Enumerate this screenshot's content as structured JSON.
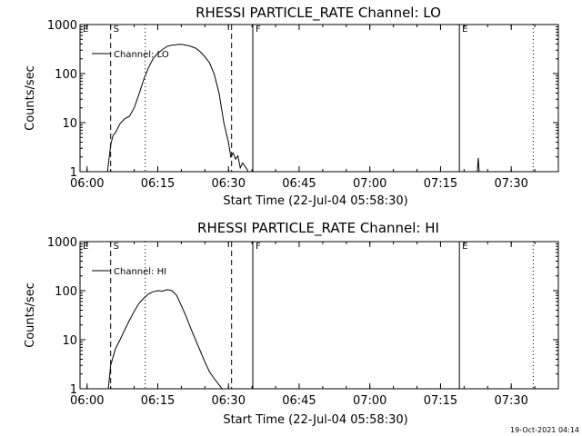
{
  "chart_data": [
    {
      "type": "line",
      "title": "RHESSI PARTICLE_RATE Channel: LO",
      "xlabel": "Start Time (22-Jul-04 05:58:30)",
      "ylabel": "Counts/sec",
      "yscale": "log",
      "ylim": [
        1,
        1000
      ],
      "xlim": [
        "05:58:30",
        "07:40:00"
      ],
      "x_ticks": [
        "06:00",
        "06:15",
        "06:30",
        "06:45",
        "07:00",
        "07:15",
        "07:30"
      ],
      "y_ticks": [
        "1",
        "10",
        "100",
        "1000"
      ],
      "grid": false,
      "legend_position": "top-left",
      "series": [
        {
          "name": "Channel: LO",
          "x": [
            "06:04:20",
            "06:05:00",
            "06:05:30",
            "06:06:00",
            "06:07:00",
            "06:08:00",
            "06:09:00",
            "06:10:00",
            "06:11:00",
            "06:12:00",
            "06:13:00",
            "06:14:00",
            "06:15:00",
            "06:16:00",
            "06:17:00",
            "06:18:00",
            "06:19:00",
            "06:20:00",
            "06:21:00",
            "06:22:00",
            "06:23:00",
            "06:24:00",
            "06:25:00",
            "06:26:00",
            "06:27:00",
            "06:28:00",
            "06:29:00",
            "06:30:00",
            "06:30:30",
            "06:31:00",
            "06:31:30",
            "06:32:00",
            "06:32:30",
            "06:33:00",
            "06:34:00",
            "06:34:10"
          ],
          "y": [
            1.0,
            3.5,
            5.5,
            6.2,
            9.5,
            12.0,
            13.5,
            20.0,
            38.0,
            75.0,
            130.0,
            200.0,
            260.0,
            310.0,
            360.0,
            380.0,
            390.0,
            395.0,
            380.0,
            360.0,
            330.0,
            280.0,
            220.0,
            165.0,
            95.0,
            40.0,
            10.0,
            4.0,
            2.0,
            2.4,
            1.8,
            2.1,
            1.2,
            1.5,
            1.1,
            1.0
          ]
        }
      ],
      "x_spike": [
        "07:23:00",
        1.9
      ],
      "markers": [
        {
          "label": "E",
          "x": "05:58:30",
          "style": "none"
        },
        {
          "label": "S",
          "x": "06:05:00",
          "style": "dashed"
        },
        {
          "label": "",
          "x": "06:12:20",
          "style": "dotted"
        },
        {
          "label": "",
          "x": "06:30:40",
          "style": "dashed"
        },
        {
          "label": "F",
          "x": "06:35:10",
          "style": "solid"
        },
        {
          "label": "E",
          "x": "07:19:00",
          "style": "solid"
        },
        {
          "label": "",
          "x": "07:34:40",
          "style": "dotted"
        }
      ]
    },
    {
      "type": "line",
      "title": "RHESSI PARTICLE_RATE Channel: HI",
      "xlabel": "Start Time (22-Jul-04 05:58:30)",
      "ylabel": "Counts/sec",
      "yscale": "log",
      "ylim": [
        1,
        1000
      ],
      "xlim": [
        "05:58:30",
        "07:40:00"
      ],
      "x_ticks": [
        "06:00",
        "06:15",
        "06:30",
        "06:45",
        "07:00",
        "07:15",
        "07:30"
      ],
      "y_ticks": [
        "1",
        "10",
        "100",
        "1000"
      ],
      "grid": false,
      "legend_position": "top-left",
      "series": [
        {
          "name": "Channel: HI",
          "x": [
            "06:04:30",
            "06:05:00",
            "06:06:00",
            "06:07:00",
            "06:08:00",
            "06:09:00",
            "06:10:00",
            "06:11:00",
            "06:12:00",
            "06:13:00",
            "06:14:00",
            "06:15:00",
            "06:16:00",
            "06:17:00",
            "06:18:00",
            "06:19:00",
            "06:20:00",
            "06:21:00",
            "06:22:00",
            "06:23:00",
            "06:24:00",
            "06:25:00",
            "06:26:00",
            "06:27:00",
            "06:28:00",
            "06:28:40"
          ],
          "y": [
            1.0,
            3.0,
            6.5,
            10.0,
            16.0,
            25.0,
            38.0,
            55.0,
            70.0,
            85.0,
            95.0,
            100.0,
            98.0,
            105.0,
            100.0,
            80.0,
            50.0,
            30.0,
            17.0,
            10.0,
            6.0,
            3.5,
            2.2,
            1.6,
            1.2,
            1.0
          ]
        }
      ],
      "markers": [
        {
          "label": "E",
          "x": "05:58:30",
          "style": "none"
        },
        {
          "label": "S",
          "x": "06:05:00",
          "style": "dashed"
        },
        {
          "label": "",
          "x": "06:12:20",
          "style": "dotted"
        },
        {
          "label": "",
          "x": "06:30:40",
          "style": "dashed"
        },
        {
          "label": "F",
          "x": "06:35:10",
          "style": "solid"
        },
        {
          "label": "E",
          "x": "07:19:00",
          "style": "solid"
        },
        {
          "label": "",
          "x": "07:34:40",
          "style": "dotted"
        }
      ]
    }
  ],
  "footer": {
    "timestamp": "19-Oct-2021 04:14"
  }
}
